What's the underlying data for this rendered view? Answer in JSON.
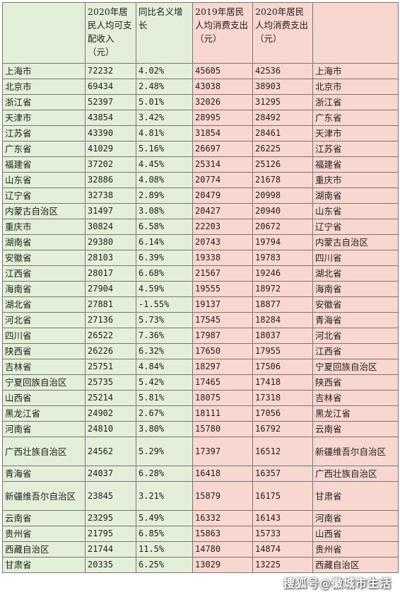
{
  "headers": {
    "region": "",
    "income2020": "2020年居民人均可支配收入（元）",
    "growth": "同比名义增长",
    "consume2019": "2019年居民人均消费支出（元）",
    "consume2020": "2020年居民人均消费支出（元）",
    "rank2020": ""
  },
  "rows": [
    {
      "region": "上海市",
      "income": "72232",
      "growth": "4.02%",
      "c2019": "45605",
      "c2020": "42536",
      "rank": "上海市"
    },
    {
      "region": "北京市",
      "income": "69434",
      "growth": "2.48%",
      "c2019": "43038",
      "c2020": "38903",
      "rank": "北京市"
    },
    {
      "region": "浙江省",
      "income": "52397",
      "growth": "5.01%",
      "c2019": "32026",
      "c2020": "31295",
      "rank": "浙江省"
    },
    {
      "region": "天津市",
      "income": "43854",
      "growth": "3.42%",
      "c2019": "28995",
      "c2020": "28492",
      "rank": "广东省"
    },
    {
      "region": "江苏省",
      "income": "43390",
      "growth": "4.81%",
      "c2019": "31854",
      "c2020": "28461",
      "rank": "天津市"
    },
    {
      "region": "广东省",
      "income": "41029",
      "growth": "5.16%",
      "c2019": "26697",
      "c2020": "26225",
      "rank": "江苏省"
    },
    {
      "region": "福建省",
      "income": "37202",
      "growth": "4.45%",
      "c2019": "25314",
      "c2020": "25126",
      "rank": "福建省"
    },
    {
      "region": "山东省",
      "income": "32886",
      "growth": "4.08%",
      "c2019": "20774",
      "c2020": "21678",
      "rank": "重庆市"
    },
    {
      "region": "辽宁省",
      "income": "32738",
      "growth": "2.89%",
      "c2019": "20479",
      "c2020": "20998",
      "rank": "湖南省"
    },
    {
      "region": "内蒙古自治区",
      "income": "31497",
      "growth": "3.08%",
      "c2019": "20427",
      "c2020": "20940",
      "rank": "山东省"
    },
    {
      "region": "重庆市",
      "income": "30824",
      "growth": "6.58%",
      "c2019": "22203",
      "c2020": "20672",
      "rank": "辽宁省"
    },
    {
      "region": "湖南省",
      "income": "29380",
      "growth": "6.14%",
      "c2019": "20743",
      "c2020": "19794",
      "rank": "内蒙古自治区"
    },
    {
      "region": "安徽省",
      "income": "28103",
      "growth": "6.39%",
      "c2019": "19338",
      "c2020": "19783",
      "rank": "四川省"
    },
    {
      "region": "江西省",
      "income": "28017",
      "growth": "6.68%",
      "c2019": "21567",
      "c2020": "19246",
      "rank": "湖北省"
    },
    {
      "region": "海南省",
      "income": "27904",
      "growth": "4.59%",
      "c2019": "19555",
      "c2020": "18972",
      "rank": "海南省"
    },
    {
      "region": "湖北省",
      "income": "27881",
      "growth": "-1.55%",
      "c2019": "19137",
      "c2020": "18877",
      "rank": "安徽省"
    },
    {
      "region": "河北省",
      "income": "27136",
      "growth": "5.73%",
      "c2019": "17545",
      "c2020": "18284",
      "rank": "青海省"
    },
    {
      "region": "四川省",
      "income": "26522",
      "growth": "7.36%",
      "c2019": "17987",
      "c2020": "18037",
      "rank": "河北省"
    },
    {
      "region": "陕西省",
      "income": "26226",
      "growth": "6.32%",
      "c2019": "17650",
      "c2020": "17955",
      "rank": "江西省"
    },
    {
      "region": "吉林省",
      "income": "25751",
      "growth": "4.84%",
      "c2019": "18297",
      "c2020": "17506",
      "rank": "宁夏回族自治区"
    },
    {
      "region": "宁夏回族自治区",
      "income": "25735",
      "growth": "5.42%",
      "c2019": "17465",
      "c2020": "17418",
      "rank": "陕西省"
    },
    {
      "region": "山西省",
      "income": "25214",
      "growth": "5.81%",
      "c2019": "18075",
      "c2020": "17318",
      "rank": "吉林省"
    },
    {
      "region": "黑龙江省",
      "income": "24902",
      "growth": "2.67%",
      "c2019": "18111",
      "c2020": "17056",
      "rank": "黑龙江省"
    },
    {
      "region": "河南省",
      "income": "24810",
      "growth": "3.80%",
      "c2019": "15780",
      "c2020": "16792",
      "rank": "云南省"
    },
    {
      "region": "广西壮族自治区",
      "income": "24562",
      "growth": "5.29%",
      "c2019": "17397",
      "c2020": "16512",
      "rank": "新疆维吾尔自治区"
    },
    {
      "region": "青海省",
      "income": "24037",
      "growth": "6.28%",
      "c2019": "16418",
      "c2020": "16357",
      "rank": "广西壮族自治区"
    },
    {
      "region": "新疆维吾尔自治区",
      "income": "23845",
      "growth": "3.21%",
      "c2019": "15879",
      "c2020": "16175",
      "rank": "甘肃省"
    },
    {
      "region": "云南省",
      "income": "23295",
      "growth": "5.49%",
      "c2019": "16332",
      "c2020": "16143",
      "rank": "河南省"
    },
    {
      "region": "贵州省",
      "income": "21795",
      "growth": "6.85%",
      "c2019": "15863",
      "c2020": "15733",
      "rank": "山西省"
    },
    {
      "region": "西藏自治区",
      "income": "21744",
      "growth": "11.5%",
      "c2019": "14780",
      "c2020": "14874",
      "rank": "贵州省"
    },
    {
      "region": "甘肃省",
      "income": "20335",
      "growth": "6.25%",
      "c2019": "13029",
      "c2020": "13225",
      "rank": "西藏自治区"
    }
  ],
  "watermark": "搜狐号@徽城市生活",
  "colors": {
    "green": "#e3efd8",
    "pink": "#f7d7cf"
  }
}
